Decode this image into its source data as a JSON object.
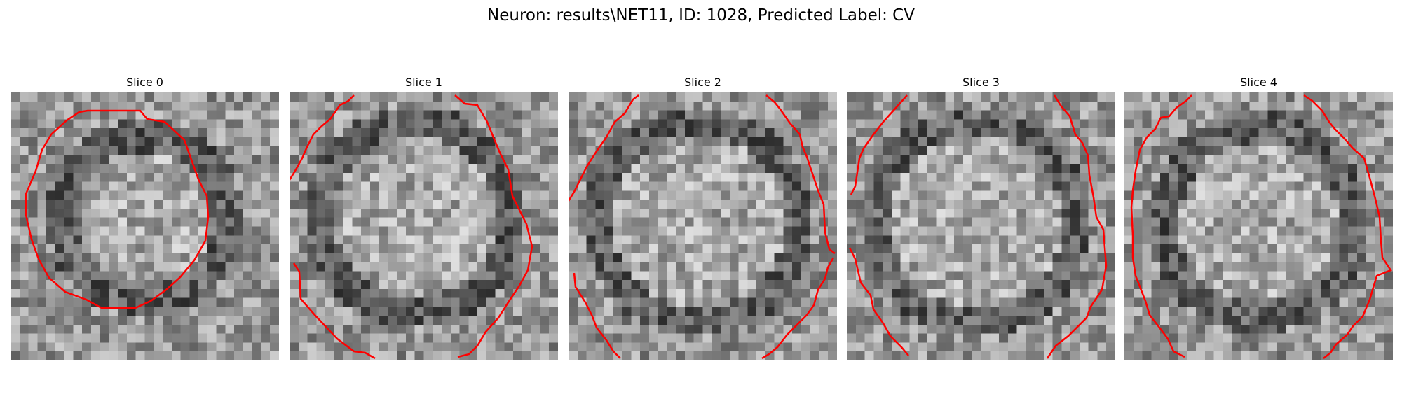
{
  "figure": {
    "suptitle": "Neuron: results\\NET11, ID: 1028, Predicted Label: CV"
  },
  "panels": [
    {
      "title": "Slice 0",
      "contour_color": "#ff0000"
    },
    {
      "title": "Slice 1",
      "contour_color": "#ff0000"
    },
    {
      "title": "Slice 2",
      "contour_color": "#ff0000"
    },
    {
      "title": "Slice 3",
      "contour_color": "#ff0000"
    },
    {
      "title": "Slice 4",
      "contour_color": "#ff0000"
    }
  ],
  "colormap": "gray"
}
